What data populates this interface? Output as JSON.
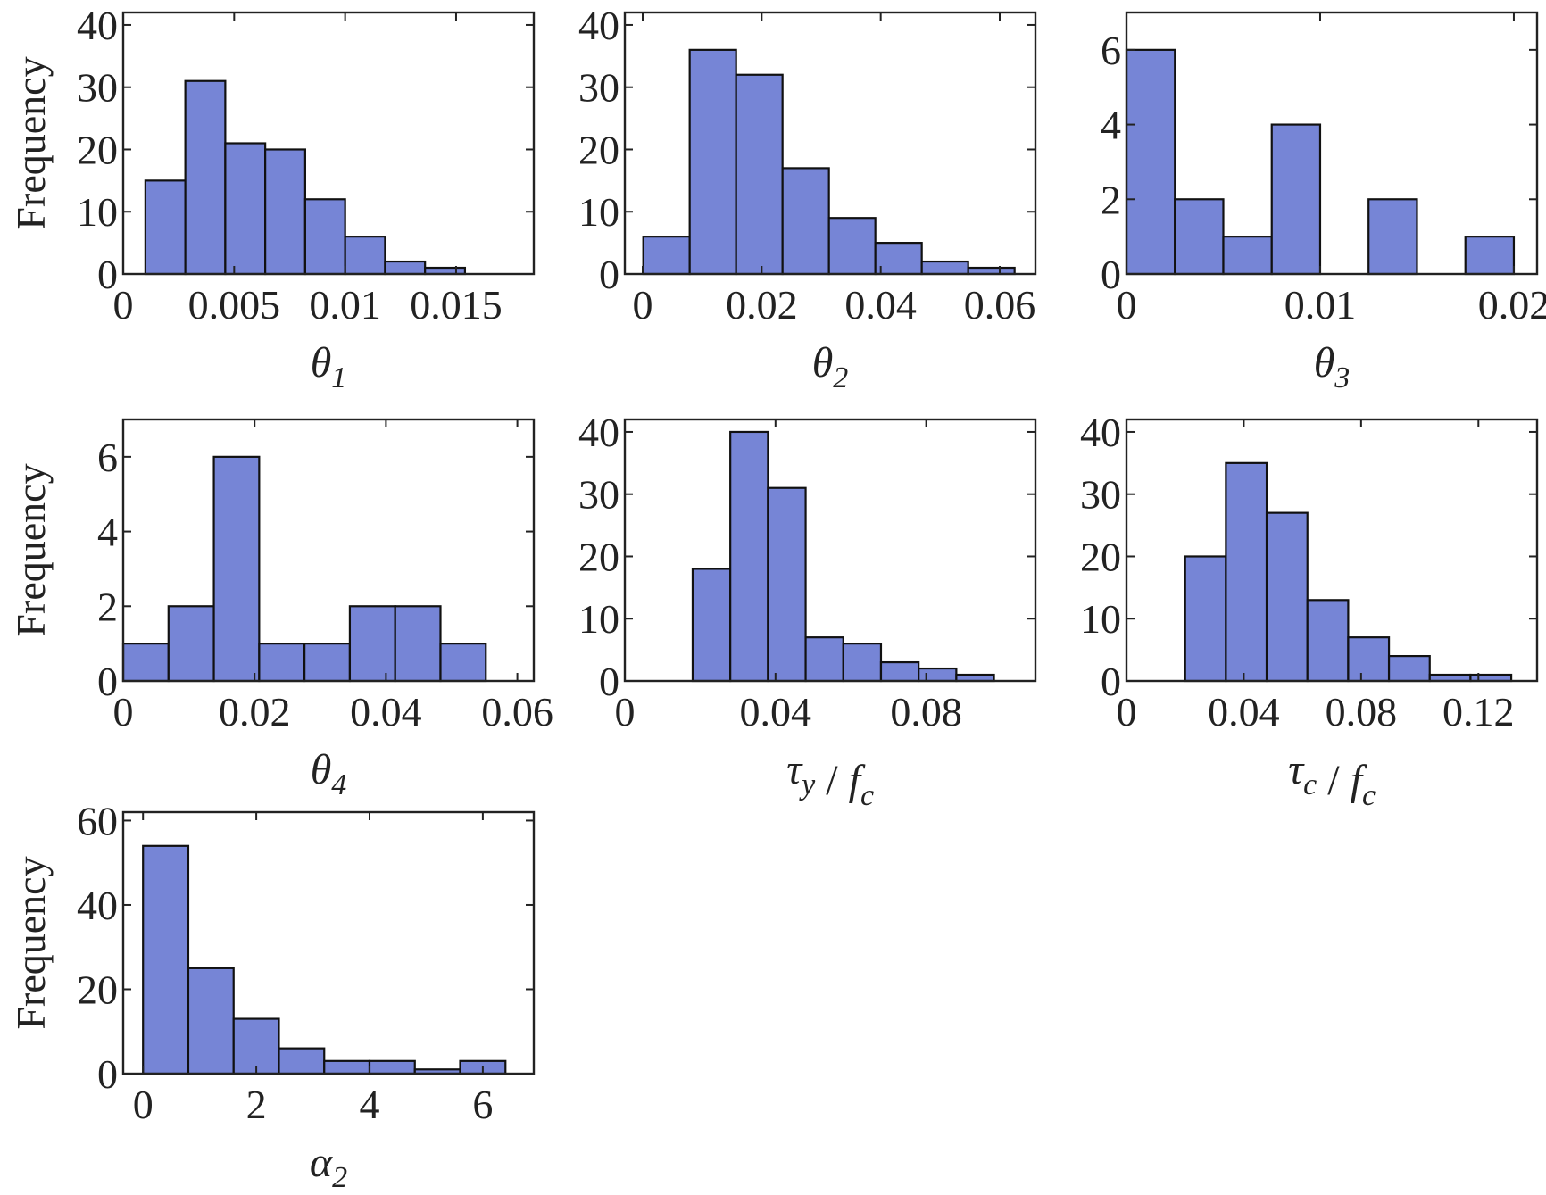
{
  "chart_data": [
    {
      "type": "bar",
      "panel": "theta1",
      "xlabel": "θ1",
      "ylabel": "Frequency",
      "xlim": [
        0,
        0.0185
      ],
      "ylim": [
        0,
        42
      ],
      "xticks": [
        0,
        0.005,
        0.01,
        0.015
      ],
      "xtick_labels": [
        "0",
        "0.005",
        "0.01",
        "0.015"
      ],
      "yticks": [
        0,
        10,
        20,
        30,
        40
      ],
      "ytick_labels": [
        "0",
        "10",
        "20",
        "30",
        "40"
      ],
      "bin_edges": [
        0.001,
        0.0028,
        0.0046,
        0.0064,
        0.0082,
        0.01,
        0.0118,
        0.0136,
        0.0154
      ],
      "values": [
        15,
        31,
        21,
        20,
        12,
        6,
        2,
        1
      ]
    },
    {
      "type": "bar",
      "panel": "theta2",
      "xlabel": "θ2",
      "ylabel": "",
      "xlim": [
        -0.003,
        0.066
      ],
      "ylim": [
        0,
        42
      ],
      "xticks": [
        0,
        0.02,
        0.04,
        0.06
      ],
      "xtick_labels": [
        "0",
        "0.02",
        "0.04",
        "0.06"
      ],
      "yticks": [
        0,
        10,
        20,
        30,
        40
      ],
      "ytick_labels": [
        "0",
        "10",
        "20",
        "30",
        "40"
      ],
      "bin_edges": [
        0.0001,
        0.0079,
        0.0157,
        0.0235,
        0.0313,
        0.0391,
        0.0469,
        0.0547,
        0.0625
      ],
      "values": [
        6,
        36,
        32,
        17,
        9,
        5,
        2,
        1
      ]
    },
    {
      "type": "bar",
      "panel": "theta3",
      "xlabel": "θ3",
      "ylabel": "",
      "xlim": [
        0,
        0.0212
      ],
      "ylim": [
        0,
        7
      ],
      "xticks": [
        0,
        0.01,
        0.02
      ],
      "xtick_labels": [
        "0",
        "0.01",
        "0.02"
      ],
      "yticks": [
        0,
        2,
        4,
        6
      ],
      "ytick_labels": [
        "0",
        "2",
        "4",
        "6"
      ],
      "bin_edges": [
        0,
        0.0025,
        0.005,
        0.0075,
        0.01,
        0.0125,
        0.015,
        0.0175,
        0.02
      ],
      "values": [
        6,
        2,
        1,
        4,
        0,
        2,
        0,
        1
      ]
    },
    {
      "type": "bar",
      "panel": "theta4",
      "xlabel": "θ4",
      "ylabel": "Frequency",
      "xlim": [
        0,
        0.0625
      ],
      "ylim": [
        0,
        7
      ],
      "xticks": [
        0,
        0.02,
        0.04,
        0.06
      ],
      "xtick_labels": [
        "0",
        "0.02",
        "0.04",
        "0.06"
      ],
      "yticks": [
        0,
        2,
        4,
        6
      ],
      "ytick_labels": [
        "0",
        "2",
        "4",
        "6"
      ],
      "bin_edges": [
        0,
        0.0069,
        0.0138,
        0.0207,
        0.0276,
        0.0345,
        0.0414,
        0.0483,
        0.0552
      ],
      "values": [
        1,
        2,
        6,
        1,
        1,
        2,
        2,
        1
      ]
    },
    {
      "type": "bar",
      "panel": "tau_y_over_fc",
      "xlabel": "τy / fc",
      "ylabel": "",
      "xlim": [
        0,
        0.109
      ],
      "ylim": [
        0,
        42
      ],
      "xticks": [
        0,
        0.04,
        0.08
      ],
      "xtick_labels": [
        "0",
        "0.04",
        "0.08"
      ],
      "yticks": [
        0,
        10,
        20,
        30,
        40
      ],
      "ytick_labels": [
        "0",
        "10",
        "20",
        "30",
        "40"
      ],
      "bin_edges": [
        0.018,
        0.028,
        0.038,
        0.048,
        0.058,
        0.068,
        0.078,
        0.088,
        0.098,
        0.108
      ],
      "values": [
        18,
        40,
        31,
        7,
        6,
        3,
        2,
        1,
        0
      ]
    },
    {
      "type": "bar",
      "panel": "tau_c_over_fc",
      "xlabel": "τc / fc",
      "ylabel": "",
      "xlim": [
        0,
        0.14
      ],
      "ylim": [
        0,
        42
      ],
      "xticks": [
        0,
        0.04,
        0.08,
        0.12
      ],
      "xtick_labels": [
        "0",
        "0.04",
        "0.08",
        "0.12"
      ],
      "yticks": [
        0,
        10,
        20,
        30,
        40
      ],
      "ytick_labels": [
        "0",
        "10",
        "20",
        "30",
        "40"
      ],
      "bin_edges": [
        0.02,
        0.0339,
        0.0478,
        0.0617,
        0.0756,
        0.0895,
        0.1034,
        0.1173,
        0.1312
      ],
      "values": [
        20,
        35,
        27,
        13,
        7,
        4,
        1,
        1
      ]
    },
    {
      "type": "bar",
      "panel": "alpha2",
      "xlabel": "α2",
      "ylabel": "Frequency",
      "xlim": [
        -0.35,
        6.9
      ],
      "ylim": [
        0,
        62
      ],
      "xticks": [
        0,
        2,
        4,
        6
      ],
      "xtick_labels": [
        "0",
        "2",
        "4",
        "6"
      ],
      "yticks": [
        0,
        20,
        40,
        60
      ],
      "ytick_labels": [
        "0",
        "20",
        "40",
        "60"
      ],
      "bin_edges": [
        0,
        0.8,
        1.6,
        2.4,
        3.2,
        4.0,
        4.8,
        5.6,
        6.4
      ],
      "values": [
        54,
        25,
        13,
        6,
        3,
        3,
        1,
        3
      ]
    }
  ],
  "colors": {
    "bar_fill": "#7685d6",
    "bar_edge": "#111111",
    "axis": "#222222"
  }
}
